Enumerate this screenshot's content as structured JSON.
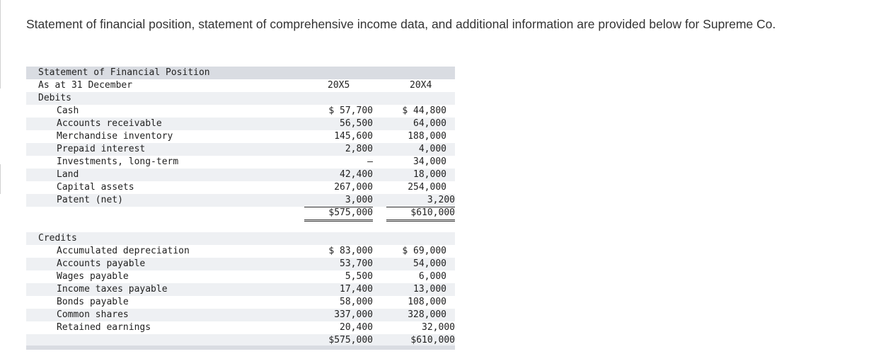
{
  "intro_text": "Statement of financial position, statement of comprehensive income data, and additional information are provided below for Supreme Co.",
  "statement": {
    "title": "Statement of Financial Position",
    "subtitle": "As at 31 December",
    "col1": "20X5",
    "col2": "20X4",
    "debits_label": "Debits",
    "credits_label": "Credits",
    "debits": [
      {
        "label": "Cash",
        "v1": "$ 57,700",
        "v2": "$ 44,800"
      },
      {
        "label": "Accounts receivable",
        "v1": "56,500",
        "v2": "64,000"
      },
      {
        "label": "Merchandise inventory",
        "v1": "145,600",
        "v2": "188,000"
      },
      {
        "label": "Prepaid interest",
        "v1": "2,800",
        "v2": "4,000"
      },
      {
        "label": "Investments, long-term",
        "v1": "—",
        "v2": "34,000"
      },
      {
        "label": "Land",
        "v1": "42,400",
        "v2": "18,000"
      },
      {
        "label": "Capital assets",
        "v1": "267,000",
        "v2": "254,000"
      },
      {
        "label": "Patent (net)",
        "v1": "3,000",
        "v2": "3,200"
      }
    ],
    "debits_total": {
      "v1": "$575,000",
      "v2": "$610,000"
    },
    "credits": [
      {
        "label": "Accumulated depreciation",
        "v1": "$ 83,000",
        "v2": "$ 69,000"
      },
      {
        "label": "Accounts payable",
        "v1": "53,700",
        "v2": "54,000"
      },
      {
        "label": "Wages payable",
        "v1": "5,500",
        "v2": "6,000"
      },
      {
        "label": "Income taxes payable",
        "v1": "17,400",
        "v2": "13,000"
      },
      {
        "label": "Bonds payable",
        "v1": "58,000",
        "v2": "108,000"
      },
      {
        "label": "Common shares",
        "v1": "337,000",
        "v2": "328,000"
      },
      {
        "label": "Retained earnings",
        "v1": "20,400",
        "v2": "32,000"
      }
    ],
    "credits_total": {
      "v1": "$575,000",
      "v2": "$610,000"
    }
  }
}
